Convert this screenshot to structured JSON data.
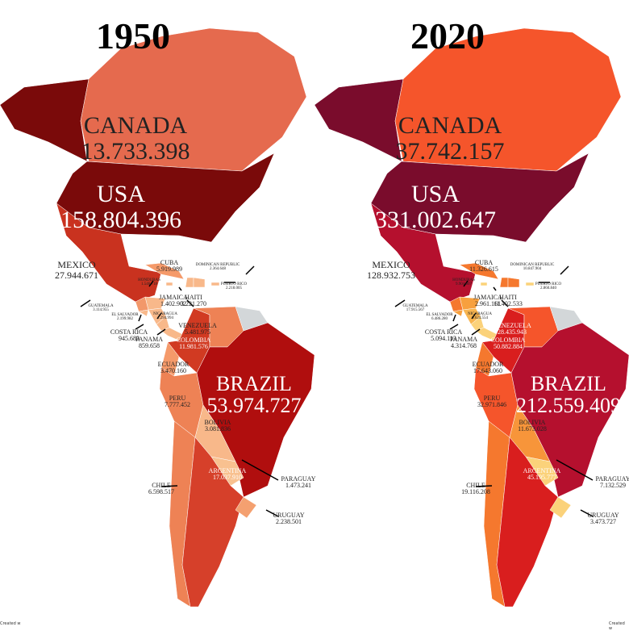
{
  "maps": [
    {
      "year": "1950",
      "credit": "Created w",
      "countries": {
        "canada": {
          "name": "CANADA",
          "population": "13.733.398",
          "color": "#e56a4e"
        },
        "alaska": {
          "color": "#7a0a0a"
        },
        "usa": {
          "name": "USA",
          "population": "158.804.396",
          "color": "#7a0a0a"
        },
        "mexico": {
          "name": "MEXICO",
          "population": "27.944.671",
          "color": "#c9321f"
        },
        "cuba": {
          "name": "CUBA",
          "population": "5.919.989",
          "color": "#f59a6a"
        },
        "dominican_republic": {
          "name": "DOMINICAN REPUBLIC",
          "population": "2.364.648",
          "color": "#f8b88a"
        },
        "puerto_rico": {
          "name": "PUERTO RICO",
          "population": "2.218.005",
          "color": "#f8b88a"
        },
        "honduras": {
          "name": "HONDURAS",
          "population": "1.546.718",
          "color": "#f8b88a"
        },
        "jamaica": {
          "name": "JAMAICA",
          "population": "1.402.902",
          "color": "#f8b88a"
        },
        "haiti": {
          "name": "HAITI",
          "population": "3.221.270",
          "color": "#f8b88a"
        },
        "guatemala": {
          "name": "GUATEMALA",
          "population": "3.114.955",
          "color": "#f2986a"
        },
        "el_salvador": {
          "name": "EL SALVADOR",
          "population": "2.199.982",
          "color": "#f8b88a"
        },
        "nicaragua": {
          "name": "NICARAGUA",
          "population": "1.294.994",
          "color": "#f8b88a"
        },
        "costa_rica": {
          "name": "COSTA RICA",
          "population": "945.683",
          "color": "#f8b88a"
        },
        "panama": {
          "name": "PANAMA",
          "population": "859.658",
          "color": "#f8b88a"
        },
        "venezuela": {
          "name": "VENEZUELA",
          "population": "5.481.975",
          "color": "#ee8255"
        },
        "colombia": {
          "name": "COLOMBIA",
          "population": "11.981.576",
          "color": "#d13a22"
        },
        "ecuador": {
          "name": "ECUADOR",
          "population": "3.470.160",
          "color": "#f59a6a"
        },
        "guianas": {
          "color": "#d3d7d9"
        },
        "peru": {
          "name": "PERU",
          "population": "7.777.452",
          "color": "#ee8255"
        },
        "brazil": {
          "name": "BRAZIL",
          "population": "53.974.727",
          "color": "#b00e0e"
        },
        "bolivia": {
          "name": "BOLIVIA",
          "population": "3.081.836",
          "color": "#f8b88a"
        },
        "paraguay": {
          "name": "PARAGUAY",
          "population": "1.473.241",
          "color": "#f8c190"
        },
        "chile": {
          "name": "CHILE",
          "population": "6.598.517",
          "color": "#ee8255"
        },
        "argentina": {
          "name": "ARGENTINA",
          "population": "17.037.910",
          "color": "#d6402a"
        },
        "uruguay": {
          "name": "URUGUAY",
          "population": "2.238.501",
          "color": "#f4a070"
        }
      }
    },
    {
      "year": "2020",
      "credit": "Created w",
      "countries": {
        "canada": {
          "name": "CANADA",
          "population": "37.742.157",
          "color": "#f5552b"
        },
        "alaska": {
          "color": "#7a0c2c"
        },
        "usa": {
          "name": "USA",
          "population": "331.002.647",
          "color": "#7a0c2c"
        },
        "mexico": {
          "name": "MEXICO",
          "population": "128.932.753",
          "color": "#b5102e"
        },
        "cuba": {
          "name": "CUBA",
          "population": "11.326.615",
          "color": "#f5782e"
        },
        "dominican_republic": {
          "name": "DOMINICAN REPUBLIC",
          "population": "10.847.904",
          "color": "#f5782e"
        },
        "puerto_rico": {
          "name": "PUERTO RICO",
          "population": "2.860.840",
          "color": "#fbd27a"
        },
        "honduras": {
          "name": "HONDURAS",
          "population": "9.904.607",
          "color": "#f7a03e"
        },
        "jamaica": {
          "name": "JAMAICA",
          "population": "2.961.161",
          "color": "#fbd27a"
        },
        "haiti": {
          "name": "HAITI",
          "population": "11.402.533",
          "color": "#f5782e"
        },
        "guatemala": {
          "name": "GUATEMALA",
          "population": "17.915.567",
          "color": "#f5782e"
        },
        "el_salvador": {
          "name": "EL SALVADOR",
          "population": "6.486.280",
          "color": "#f7a03e"
        },
        "nicaragua": {
          "name": "NICARAGUA",
          "population": "6.624.554",
          "color": "#f8b550"
        },
        "costa_rica": {
          "name": "COSTA RICA",
          "population": "5.094.113",
          "color": "#fbd27a"
        },
        "panama": {
          "name": "PANAMA",
          "population": "4.314.768",
          "color": "#fbd27a"
        },
        "venezuela": {
          "name": "VENEZUELA",
          "population": "28.435.943",
          "color": "#f5552b"
        },
        "colombia": {
          "name": "COLOMBIA",
          "population": "50.882.884",
          "color": "#d91e1e"
        },
        "ecuador": {
          "name": "ECUADOR",
          "population": "17.643.060",
          "color": "#f5782e"
        },
        "guianas": {
          "color": "#d3d7d9"
        },
        "peru": {
          "name": "PERU",
          "population": "32.971.846",
          "color": "#f5552b"
        },
        "brazil": {
          "name": "BRAZIL",
          "population": "212.559.409",
          "color": "#b5102e"
        },
        "bolivia": {
          "name": "BOLIVIA",
          "population": "11.673.028",
          "color": "#f7953a"
        },
        "paraguay": {
          "name": "PARAGUAY",
          "population": "7.132.529",
          "color": "#fbd27a"
        },
        "chile": {
          "name": "CHILE",
          "population": "19.116.208",
          "color": "#f5782e"
        },
        "argentina": {
          "name": "ARGENTINA",
          "population": "45.195.777",
          "color": "#d91e1e"
        },
        "uruguay": {
          "name": "URUGUAY",
          "population": "3.473.727",
          "color": "#fbd27a"
        }
      }
    }
  ]
}
